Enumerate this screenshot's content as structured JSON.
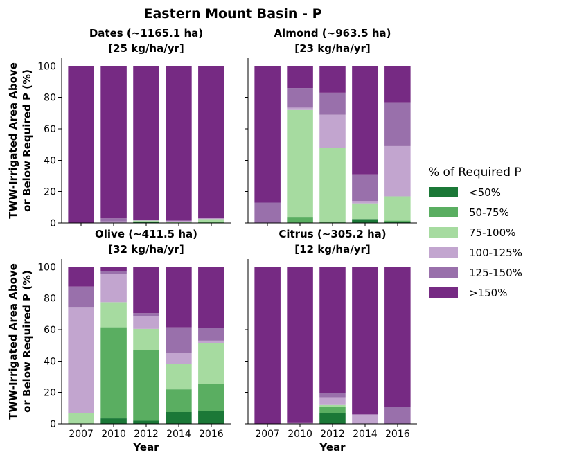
{
  "figure": {
    "title": "Eastern Mount Basin - P",
    "ylabel_lines": [
      "TWW-Irrigated Area Above",
      "or Below Required P (%)"
    ],
    "xlabel": "Year"
  },
  "legend": {
    "title": "% of Required P",
    "items": [
      {
        "label": "<50%",
        "color": "#1b7837"
      },
      {
        "label": "50-75%",
        "color": "#5aae61"
      },
      {
        "label": "75-100%",
        "color": "#a6dba0"
      },
      {
        "label": "100-125%",
        "color": "#c2a5cf"
      },
      {
        "label": "125-150%",
        "color": "#9970ab"
      },
      {
        "label": ">150%",
        "color": "#762a83"
      }
    ]
  },
  "chart_data": [
    {
      "type": "bar",
      "stacked": true,
      "title_lines": [
        "Dates (~1165.1 ha)",
        "[25 kg/ha/yr]"
      ],
      "categories": [
        "2007",
        "2010",
        "2012",
        "2014",
        "2016"
      ],
      "ylim": [
        0,
        105
      ],
      "yticks": [
        0,
        20,
        40,
        60,
        80,
        100
      ],
      "series": [
        {
          "name": "<50%",
          "values": [
            0,
            0,
            0.5,
            0,
            0
          ]
        },
        {
          "name": "50-75%",
          "values": [
            0,
            0,
            0.5,
            0,
            0.5
          ]
        },
        {
          "name": "75-100%",
          "values": [
            0,
            0,
            0.5,
            0.5,
            2
          ]
        },
        {
          "name": "100-125%",
          "values": [
            0,
            1,
            0.5,
            1,
            0.5
          ]
        },
        {
          "name": "125-150%",
          "values": [
            0,
            2,
            0,
            0,
            0
          ]
        },
        {
          "name": ">150%",
          "values": [
            100,
            97,
            98,
            98.5,
            97
          ]
        }
      ]
    },
    {
      "type": "bar",
      "stacked": true,
      "title_lines": [
        "Almond (~963.5 ha)",
        "[23 kg/ha/yr]"
      ],
      "categories": [
        "2007",
        "2010",
        "2012",
        "2014",
        "2016"
      ],
      "ylim": [
        0,
        105
      ],
      "yticks": [
        0,
        20,
        40,
        60,
        80,
        100
      ],
      "series": [
        {
          "name": "<50%",
          "values": [
            0,
            0,
            0,
            2.5,
            0.5
          ]
        },
        {
          "name": "50-75%",
          "values": [
            0,
            3.5,
            1,
            0,
            1
          ]
        },
        {
          "name": "75-100%",
          "values": [
            0,
            68.5,
            47,
            10,
            15.5
          ]
        },
        {
          "name": "100-125%",
          "values": [
            0,
            1.5,
            21,
            1.5,
            32
          ]
        },
        {
          "name": "125-150%",
          "values": [
            13,
            12.5,
            14,
            17,
            27.5
          ]
        },
        {
          "name": ">150%",
          "values": [
            87,
            14,
            17,
            69,
            23.5
          ]
        }
      ]
    },
    {
      "type": "bar",
      "stacked": true,
      "title_lines": [
        "Olive (~411.5 ha)",
        "[32 kg/ha/yr]"
      ],
      "categories": [
        "2007",
        "2010",
        "2012",
        "2014",
        "2016"
      ],
      "ylim": [
        0,
        105
      ],
      "yticks": [
        0,
        20,
        40,
        60,
        80,
        100
      ],
      "series": [
        {
          "name": "<50%",
          "values": [
            0,
            3.5,
            2,
            7.5,
            8
          ]
        },
        {
          "name": "50-75%",
          "values": [
            0,
            58,
            45,
            14.5,
            17.5
          ]
        },
        {
          "name": "75-100%",
          "values": [
            7,
            16,
            13.5,
            16,
            26
          ]
        },
        {
          "name": "100-125%",
          "values": [
            67,
            18,
            8,
            7,
            1.5
          ]
        },
        {
          "name": "125-150%",
          "values": [
            13.5,
            2,
            2,
            16.5,
            8
          ]
        },
        {
          "name": ">150%",
          "values": [
            12.5,
            2.5,
            29.5,
            38.5,
            39
          ]
        }
      ]
    },
    {
      "type": "bar",
      "stacked": true,
      "title_lines": [
        "Citrus (~305.2 ha)",
        "[12 kg/ha/yr]"
      ],
      "categories": [
        "2007",
        "2010",
        "2012",
        "2014",
        "2016"
      ],
      "ylim": [
        0,
        105
      ],
      "yticks": [
        0,
        20,
        40,
        60,
        80,
        100
      ],
      "series": [
        {
          "name": "<50%",
          "values": [
            0,
            0,
            7,
            0,
            0
          ]
        },
        {
          "name": "50-75%",
          "values": [
            0,
            0,
            4,
            0,
            0
          ]
        },
        {
          "name": "75-100%",
          "values": [
            0,
            0,
            1,
            0,
            0
          ]
        },
        {
          "name": "100-125%",
          "values": [
            0,
            0.5,
            5,
            6,
            0
          ]
        },
        {
          "name": "125-150%",
          "values": [
            0,
            0,
            2.5,
            0,
            11
          ]
        },
        {
          "name": ">150%",
          "values": [
            100,
            99.5,
            80.5,
            94,
            89
          ]
        }
      ]
    }
  ]
}
